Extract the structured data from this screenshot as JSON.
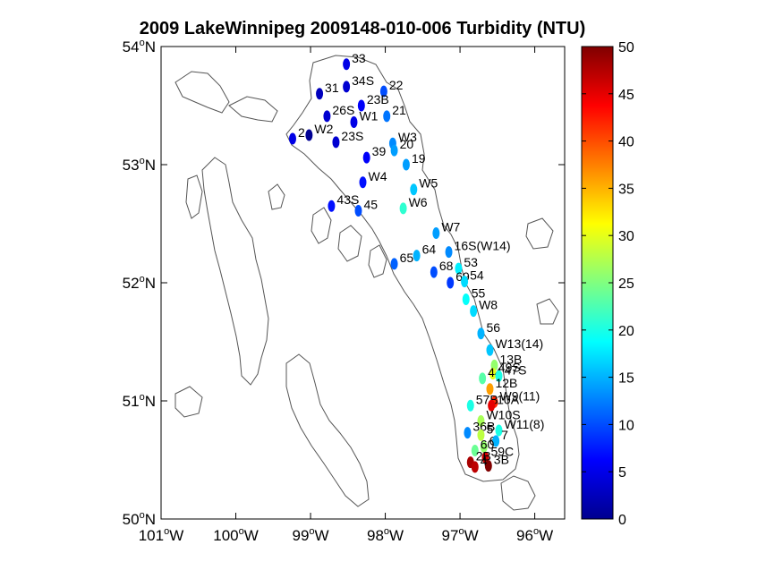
{
  "title": "2009 LakeWinnipeg 2009148-010-006 Turbidity (NTU)",
  "map_bounds": {
    "lon_min": -101,
    "lon_max": -95.6,
    "lat_min": 50,
    "lat_max": 54
  },
  "x_ticks": [
    {
      "lon": -101,
      "deg": "101",
      "hem": "W"
    },
    {
      "lon": -100,
      "deg": "100",
      "hem": "W"
    },
    {
      "lon": -99,
      "deg": "99",
      "hem": "W"
    },
    {
      "lon": -98,
      "deg": "98",
      "hem": "W"
    },
    {
      "lon": -97,
      "deg": "97",
      "hem": "W"
    },
    {
      "lon": -96,
      "deg": "96",
      "hem": "W"
    }
  ],
  "y_ticks": [
    {
      "lat": 54,
      "deg": "54",
      "hem": "N"
    },
    {
      "lat": 53,
      "deg": "53",
      "hem": "N"
    },
    {
      "lat": 52,
      "deg": "52",
      "hem": "N"
    },
    {
      "lat": 51,
      "deg": "51",
      "hem": "N"
    },
    {
      "lat": 50,
      "deg": "50",
      "hem": "N"
    }
  ],
  "colorbar": {
    "min": 0,
    "max": 50,
    "colormap": "jet",
    "ticks": [
      "0",
      "5",
      "10",
      "15",
      "20",
      "25",
      "30",
      "35",
      "40",
      "45",
      "50"
    ]
  },
  "stations": [
    {
      "label": "33",
      "lon": -98.52,
      "lat": 53.85,
      "value": 5
    },
    {
      "label": "34S",
      "lon": -98.52,
      "lat": 53.66,
      "value": 4
    },
    {
      "label": "31",
      "lon": -98.88,
      "lat": 53.6,
      "value": 3
    },
    {
      "label": "22",
      "lon": -98.02,
      "lat": 53.62,
      "value": 10
    },
    {
      "label": "23B",
      "lon": -98.32,
      "lat": 53.5,
      "value": 6
    },
    {
      "label": "26S",
      "lon": -98.78,
      "lat": 53.41,
      "value": 4
    },
    {
      "label": "W1",
      "lon": -98.42,
      "lat": 53.36,
      "value": 5
    },
    {
      "label": "21",
      "lon": -97.98,
      "lat": 53.41,
      "value": 12
    },
    {
      "label": "2",
      "lon": -99.24,
      "lat": 53.22,
      "value": 5
    },
    {
      "label": "W2",
      "lon": -99.02,
      "lat": 53.25,
      "value": 1
    },
    {
      "label": "23S",
      "lon": -98.66,
      "lat": 53.19,
      "value": 4
    },
    {
      "label": "W3",
      "lon": -97.9,
      "lat": 53.18,
      "value": 13
    },
    {
      "label": "20",
      "lon": -97.88,
      "lat": 53.12,
      "value": 14
    },
    {
      "label": "39",
      "lon": -98.25,
      "lat": 53.06,
      "value": 6
    },
    {
      "label": "19",
      "lon": -97.72,
      "lat": 53.0,
      "value": 14
    },
    {
      "label": "W4",
      "lon": -98.3,
      "lat": 52.85,
      "value": 7
    },
    {
      "label": "W5",
      "lon": -97.62,
      "lat": 52.79,
      "value": 16
    },
    {
      "label": "43S",
      "lon": -98.72,
      "lat": 52.65,
      "value": 7
    },
    {
      "label": "45",
      "lon": -98.36,
      "lat": 52.61,
      "value": 10
    },
    {
      "label": "W6",
      "lon": -97.76,
      "lat": 52.63,
      "value": 21
    },
    {
      "label": "W7",
      "lon": -97.32,
      "lat": 52.42,
      "value": 14
    },
    {
      "label": "16S(W14)",
      "lon": -97.15,
      "lat": 52.26,
      "value": 13
    },
    {
      "label": "64",
      "lon": -97.58,
      "lat": 52.23,
      "value": 15
    },
    {
      "label": "65",
      "lon": -97.88,
      "lat": 52.16,
      "value": 11
    },
    {
      "label": "53",
      "lon": -97.02,
      "lat": 52.12,
      "value": 18
    },
    {
      "label": "68",
      "lon": -97.35,
      "lat": 52.09,
      "value": 10
    },
    {
      "label": "69",
      "lon": -97.13,
      "lat": 52.0,
      "value": 9
    },
    {
      "label": "54",
      "lon": -96.94,
      "lat": 52.01,
      "value": 17
    },
    {
      "label": "55",
      "lon": -96.92,
      "lat": 51.86,
      "value": 19
    },
    {
      "label": "W8",
      "lon": -96.82,
      "lat": 51.76,
      "value": 17
    },
    {
      "label": "56",
      "lon": -96.72,
      "lat": 51.57,
      "value": 15
    },
    {
      "label": "W13(14)",
      "lon": -96.6,
      "lat": 51.43,
      "value": 16
    },
    {
      "label": "13B",
      "lon": -96.54,
      "lat": 51.3,
      "value": 26
    },
    {
      "label": "49S",
      "lon": -96.56,
      "lat": 51.23,
      "value": 30
    },
    {
      "label": "44",
      "lon": -96.7,
      "lat": 51.19,
      "value": 23
    },
    {
      "label": "47S",
      "lon": -96.48,
      "lat": 51.21,
      "value": 20
    },
    {
      "label": "12B",
      "lon": -96.6,
      "lat": 51.1,
      "value": 36
    },
    {
      "label": "W9(11)",
      "lon": -96.54,
      "lat": 50.99,
      "value": 42
    },
    {
      "label": "57B",
      "lon": -96.86,
      "lat": 50.96,
      "value": 20
    },
    {
      "label": "10A",
      "lon": -96.58,
      "lat": 50.96,
      "value": 45
    },
    {
      "label": "W10S",
      "lon": -96.72,
      "lat": 50.83,
      "value": 27
    },
    {
      "label": "W11(8)",
      "lon": -96.48,
      "lat": 50.75,
      "value": 20
    },
    {
      "label": "36B",
      "lon": -96.9,
      "lat": 50.73,
      "value": 13
    },
    {
      "label": "5",
      "lon": -96.72,
      "lat": 50.71,
      "value": 28
    },
    {
      "label": "6",
      "lon": -96.68,
      "lat": 50.61,
      "value": 26
    },
    {
      "label": "7",
      "lon": -96.52,
      "lat": 50.66,
      "value": 15
    },
    {
      "label": "60",
      "lon": -96.8,
      "lat": 50.58,
      "value": 24
    },
    {
      "label": "59C",
      "lon": -96.66,
      "lat": 50.52,
      "value": 46
    },
    {
      "label": "2B",
      "lon": -96.86,
      "lat": 50.48,
      "value": 48
    },
    {
      "label": "3B",
      "lon": -96.62,
      "lat": 50.45,
      "value": 50
    },
    {
      "label": "4",
      "lon": -96.8,
      "lat": 50.44,
      "value": 47
    }
  ]
}
